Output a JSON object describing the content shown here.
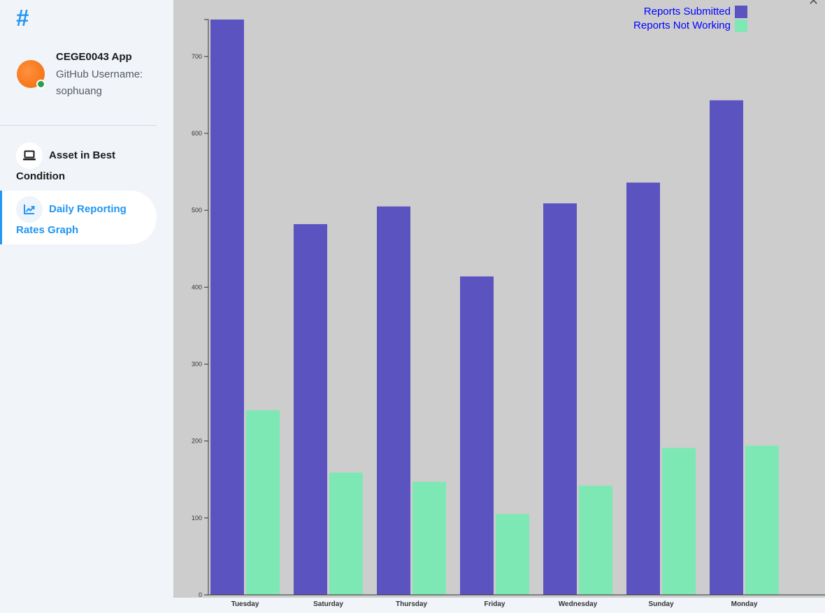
{
  "sidebar": {
    "logo": "#",
    "profile": {
      "name": "CEGE0043 App",
      "subtitle": "GitHub Username: sophuang",
      "online_status_color": "#2e9e4f"
    },
    "items": [
      {
        "label": "Asset in Best Condition",
        "icon": "laptop-icon",
        "active": false
      },
      {
        "label": "Daily Reporting Rates Graph",
        "icon": "line-chart-icon",
        "active": true
      }
    ]
  },
  "colors": {
    "accent": "#2196f3",
    "chart_background": "#cdcdcd",
    "legend_text": "#0000ff"
  },
  "chart_data": {
    "type": "bar",
    "categories": [
      "Tuesday",
      "Saturday",
      "Thursday",
      "Friday",
      "Wednesday",
      "Sunday",
      "Monday"
    ],
    "series": [
      {
        "name": "Reports Submitted",
        "color": "#5b53c0",
        "values": [
          748,
          482,
          505,
          414,
          509,
          536,
          643
        ]
      },
      {
        "name": "Reports Not Working",
        "color": "#7ee8b4",
        "values": [
          240,
          159,
          147,
          105,
          142,
          191,
          194
        ]
      }
    ],
    "yticks": [
      0,
      100,
      200,
      300,
      400,
      500,
      600,
      700
    ],
    "ylim": [
      0,
      748
    ],
    "legend_position": "top-right",
    "grid": false
  }
}
